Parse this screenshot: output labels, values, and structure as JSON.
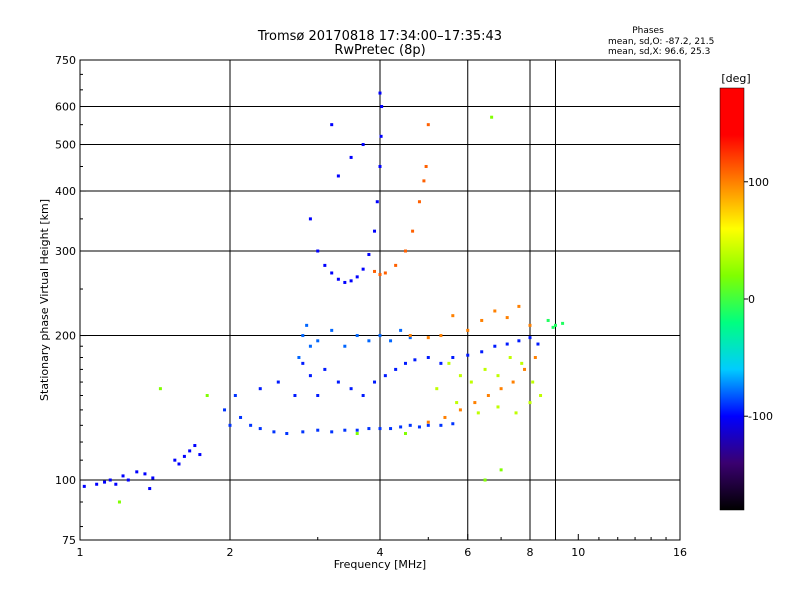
{
  "chart_data": {
    "type": "scatter",
    "title": "Tromsø 20170818 17:34:00–17:35:43",
    "subtitle": "RwPretec (8p)",
    "xlabel": "Frequency [MHz]",
    "ylabel": "Stationary phase Virtual Height [km]",
    "x_scale": "log",
    "y_scale": "log",
    "xlim": [
      1,
      16
    ],
    "ylim": [
      75,
      750
    ],
    "x_ticks": [
      {
        "value": 1,
        "label": "1"
      },
      {
        "value": 2,
        "label": "2"
      },
      {
        "value": 4,
        "label": "4"
      },
      {
        "value": 6,
        "label": "6"
      },
      {
        "value": 8,
        "label": "8"
      },
      {
        "value": 10,
        "label": "10"
      },
      {
        "value": 16,
        "label": "16"
      }
    ],
    "y_ticks": [
      {
        "value": 75,
        "label": "75"
      },
      {
        "value": 100,
        "label": "100"
      },
      {
        "value": 200,
        "label": "200"
      },
      {
        "value": 300,
        "label": "300"
      },
      {
        "value": 400,
        "label": "400"
      },
      {
        "value": 500,
        "label": "500"
      },
      {
        "value": 600,
        "label": "600"
      },
      {
        "value": 750,
        "label": "750"
      }
    ],
    "grid_x": [
      2,
      4,
      6,
      8,
      9,
      16
    ],
    "grid_y": [
      100,
      200,
      300,
      400,
      500,
      600,
      750
    ],
    "grid": true,
    "colorbar": {
      "label": "[deg]",
      "range": [
        -180,
        180
      ],
      "ticks": [
        {
          "value": 100,
          "label": "100"
        },
        {
          "value": 0,
          "label": "0"
        },
        {
          "value": -100,
          "label": "-100"
        }
      ],
      "stops": [
        "#000000",
        "#3a0070",
        "#0000ff",
        "#00ccff",
        "#00ff80",
        "#80ff00",
        "#ffff00",
        "#ff8000",
        "#ff0000",
        "#ff0000"
      ]
    },
    "stats": {
      "heading": "Phases",
      "o_line": "mean, sd,O: -87.2, 21.5",
      "x_line": "mean, sd,X:  96.6, 25.3"
    },
    "series": [
      {
        "trace": "low-f scatter",
        "phase": -100,
        "points": [
          [
            1.02,
            97
          ],
          [
            1.08,
            98
          ],
          [
            1.12,
            99
          ],
          [
            1.15,
            100
          ],
          [
            1.18,
            98
          ],
          [
            1.22,
            102
          ],
          [
            1.25,
            100
          ],
          [
            1.3,
            104
          ],
          [
            1.35,
            103
          ],
          [
            1.38,
            96
          ],
          [
            1.4,
            101
          ],
          [
            1.55,
            110
          ],
          [
            1.58,
            108
          ],
          [
            1.62,
            112
          ],
          [
            1.66,
            115
          ],
          [
            1.7,
            118
          ],
          [
            1.74,
            113
          ]
        ]
      },
      {
        "trace": "E/F1 base",
        "phase": -90,
        "points": [
          [
            1.95,
            140
          ],
          [
            2.0,
            130
          ],
          [
            2.05,
            150
          ],
          [
            2.1,
            135
          ],
          [
            2.2,
            130
          ],
          [
            2.3,
            128
          ],
          [
            2.45,
            126
          ],
          [
            2.6,
            125
          ],
          [
            2.8,
            126
          ],
          [
            3.0,
            127
          ],
          [
            3.2,
            126
          ],
          [
            3.4,
            127
          ],
          [
            3.6,
            127
          ],
          [
            3.8,
            128
          ],
          [
            4.0,
            128
          ],
          [
            4.2,
            128
          ],
          [
            4.4,
            129
          ],
          [
            4.6,
            130
          ],
          [
            4.8,
            129
          ],
          [
            5.0,
            130
          ],
          [
            5.3,
            130
          ],
          [
            5.6,
            131
          ]
        ]
      },
      {
        "trace": "F1 layer",
        "phase": -95,
        "points": [
          [
            2.3,
            155
          ],
          [
            2.5,
            160
          ],
          [
            2.7,
            150
          ],
          [
            2.8,
            175
          ],
          [
            2.9,
            165
          ],
          [
            3.0,
            150
          ],
          [
            3.1,
            170
          ],
          [
            3.3,
            160
          ],
          [
            3.5,
            155
          ],
          [
            3.7,
            150
          ],
          [
            3.9,
            160
          ],
          [
            4.1,
            165
          ],
          [
            4.3,
            170
          ],
          [
            4.5,
            175
          ],
          [
            4.7,
            178
          ],
          [
            5.0,
            180
          ],
          [
            5.3,
            175
          ],
          [
            5.6,
            180
          ],
          [
            6.0,
            182
          ],
          [
            6.4,
            185
          ],
          [
            6.8,
            190
          ],
          [
            7.2,
            192
          ],
          [
            7.6,
            195
          ],
          [
            8.0,
            198
          ],
          [
            8.3,
            192
          ]
        ]
      },
      {
        "trace": "F1 cluster",
        "phase": -80,
        "points": [
          [
            2.75,
            180
          ],
          [
            2.8,
            200
          ],
          [
            2.85,
            210
          ],
          [
            2.9,
            190
          ],
          [
            3.0,
            195
          ],
          [
            3.2,
            205
          ],
          [
            3.4,
            190
          ],
          [
            3.6,
            200
          ],
          [
            3.8,
            195
          ],
          [
            4.0,
            200
          ],
          [
            4.2,
            195
          ],
          [
            4.4,
            205
          ],
          [
            4.6,
            198
          ]
        ]
      },
      {
        "trace": "F2 o-trace",
        "phase": -100,
        "points": [
          [
            2.9,
            350
          ],
          [
            3.0,
            300
          ],
          [
            3.1,
            280
          ],
          [
            3.2,
            270
          ],
          [
            3.3,
            262
          ],
          [
            3.4,
            258
          ],
          [
            3.5,
            260
          ],
          [
            3.6,
            265
          ],
          [
            3.7,
            275
          ],
          [
            3.8,
            295
          ],
          [
            3.9,
            330
          ],
          [
            3.95,
            380
          ],
          [
            4.0,
            450
          ],
          [
            4.02,
            520
          ],
          [
            4.03,
            600
          ],
          [
            4.0,
            640
          ],
          [
            3.7,
            500
          ],
          [
            3.5,
            470
          ],
          [
            3.3,
            430
          ],
          [
            3.2,
            550
          ]
        ]
      },
      {
        "trace": "F2 x-trace",
        "phase": 110,
        "points": [
          [
            3.9,
            272
          ],
          [
            4.0,
            268
          ],
          [
            4.1,
            270
          ],
          [
            4.3,
            280
          ],
          [
            4.5,
            300
          ],
          [
            4.65,
            330
          ],
          [
            4.8,
            380
          ],
          [
            4.9,
            420
          ],
          [
            4.95,
            450
          ],
          [
            5.0,
            550
          ]
        ]
      },
      {
        "trace": "F1 x-trace",
        "phase": 100,
        "points": [
          [
            4.6,
            200
          ],
          [
            5.0,
            198
          ],
          [
            5.3,
            200
          ],
          [
            5.6,
            220
          ],
          [
            6.0,
            205
          ],
          [
            6.4,
            215
          ],
          [
            6.8,
            225
          ],
          [
            7.2,
            218
          ],
          [
            7.6,
            230
          ],
          [
            8.0,
            210
          ],
          [
            8.2,
            180
          ],
          [
            7.8,
            170
          ],
          [
            7.4,
            160
          ],
          [
            7.0,
            155
          ],
          [
            6.6,
            150
          ],
          [
            6.2,
            145
          ],
          [
            5.8,
            140
          ],
          [
            5.4,
            135
          ],
          [
            5.0,
            132
          ]
        ]
      },
      {
        "trace": "mixed scatter",
        "phase": 40,
        "points": [
          [
            5.5,
            175
          ],
          [
            5.8,
            165
          ],
          [
            6.1,
            160
          ],
          [
            6.5,
            170
          ],
          [
            6.9,
            165
          ],
          [
            7.3,
            180
          ],
          [
            7.7,
            175
          ],
          [
            8.1,
            160
          ],
          [
            8.4,
            150
          ],
          [
            5.2,
            155
          ],
          [
            5.7,
            145
          ],
          [
            6.3,
            138
          ],
          [
            6.9,
            142
          ],
          [
            7.5,
            138
          ],
          [
            8.0,
            145
          ]
        ]
      },
      {
        "trace": "far edge",
        "phase": -10,
        "points": [
          [
            9.0,
            210
          ],
          [
            9.3,
            212
          ],
          [
            8.7,
            215
          ],
          [
            8.9,
            208
          ]
        ]
      },
      {
        "trace": "isolated",
        "phase": 20,
        "points": [
          [
            1.2,
            90
          ],
          [
            1.45,
            155
          ],
          [
            1.8,
            150
          ],
          [
            3.6,
            125
          ],
          [
            4.5,
            125
          ],
          [
            6.7,
            570
          ],
          [
            6.5,
            100
          ],
          [
            7.0,
            105
          ]
        ]
      }
    ]
  }
}
